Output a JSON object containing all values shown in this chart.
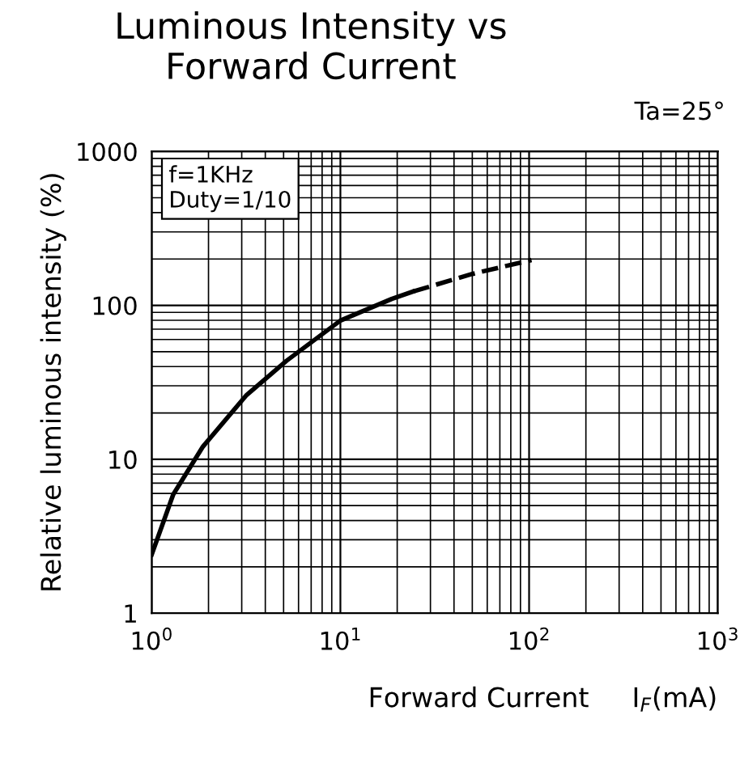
{
  "chart_data": {
    "type": "line",
    "title": "Luminous Intensity vs\nForward Current",
    "xlabel": "Forward Current     I$_{F}$(mA)",
    "ylabel": "Relative luminous intensity (%)",
    "annotations": [
      "Ta=25°",
      "f=1KHz\nDuty=1/10"
    ],
    "log": "xy",
    "xlim": [
      1,
      1000
    ],
    "ylim": [
      1,
      1000
    ],
    "xticks": [
      {
        "value": 1,
        "label": "10$^{0}$"
      },
      {
        "value": 10,
        "label": "10$^{1}$"
      },
      {
        "value": 100,
        "label": "10$^{2}$"
      },
      {
        "value": 1000,
        "label": "10$^{3}$"
      }
    ],
    "yticks": [
      1,
      10,
      100,
      1000
    ],
    "grid": true,
    "marker": "none",
    "series": [
      {
        "color": "#000000",
        "line_style": "solid",
        "x": [
          1,
          1.3,
          1.87,
          3.16,
          5.18,
          10,
          18.7,
          24.3
        ],
        "values": [
          2.4,
          5.9,
          12.1,
          25.9,
          43.6,
          79.6,
          110,
          123
        ]
      },
      {
        "color": "#000000",
        "line_style": "dashed",
        "x": [
          24.3,
          50,
          103
        ],
        "values": [
          123,
          160,
          197
        ]
      }
    ]
  }
}
